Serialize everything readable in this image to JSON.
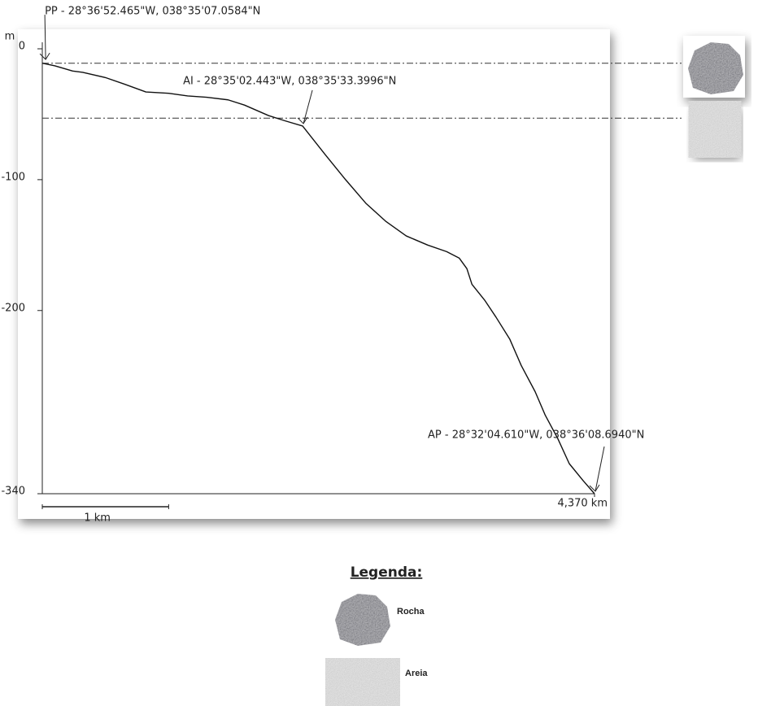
{
  "chart_data": {
    "type": "line",
    "y_label": "m",
    "x": [
      0,
      0.1,
      0.24,
      0.32,
      0.5,
      0.65,
      0.82,
      1.0,
      1.15,
      1.3,
      1.47,
      1.6,
      1.79,
      1.92,
      2.06,
      2.24,
      2.4,
      2.56,
      2.72,
      2.88,
      3.05,
      3.2,
      3.3,
      3.36,
      3.4,
      3.5,
      3.59,
      3.7,
      3.79,
      3.9,
      3.98,
      4.08,
      4.17,
      4.28,
      4.37
    ],
    "series": [
      {
        "color": "#111111",
        "values": [
          -11,
          -13,
          -17,
          -18,
          -22,
          -27,
          -33,
          -34,
          -36,
          -37,
          -39,
          -43,
          -51,
          -55,
          -59,
          -81,
          -100,
          -118,
          -132,
          -143,
          -150,
          -155,
          -160,
          -168,
          -180,
          -192,
          -205,
          -222,
          -242,
          -262,
          -280,
          -298,
          -317,
          -330,
          -340
        ]
      }
    ],
    "xlim": [
      0,
      4.37
    ],
    "ylim": [
      -340,
      0
    ],
    "yticks": [
      0,
      -100,
      -200,
      -340
    ],
    "xticks": [
      {
        "value": 4.37,
        "label": "4,370 km"
      }
    ],
    "scale_bar": {
      "value": 1,
      "label": "1 km"
    },
    "reference_lines": [
      -11,
      -53
    ],
    "annotations": [
      {
        "text": "PP - 28°36'52.465\"W, 038°35'07.0584\"N",
        "x": 0.02,
        "y": -10
      },
      {
        "text": "AI - 28°35'02.443\"W, 038°35'33.3996\"N",
        "x": 2.06,
        "y": -59
      },
      {
        "text": "AP - 28°32'04.610\"W, 038°36'08.6940\"N",
        "x": 4.37,
        "y": -340
      }
    ],
    "legend": {
      "title": "Legenda:",
      "items": [
        "Rocha",
        "Areia"
      ]
    }
  }
}
